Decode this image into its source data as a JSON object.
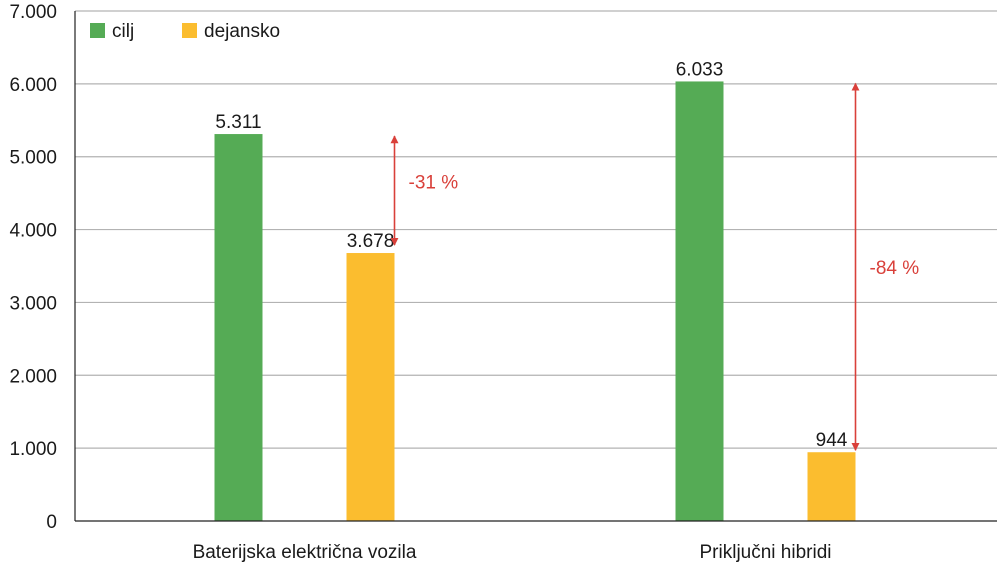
{
  "chart_data": {
    "type": "bar",
    "categories": [
      "Baterijska električna vozila",
      "Priključni hibridi"
    ],
    "series": [
      {
        "name": "cilj",
        "values": [
          5311,
          6033
        ],
        "labels": [
          "5.311",
          "6.033"
        ],
        "color": "#55ab55"
      },
      {
        "name": "dejansko",
        "values": [
          3678,
          944
        ],
        "labels": [
          "3.678",
          "944"
        ],
        "color": "#fbbd2f"
      }
    ],
    "ylim": [
      0,
      7000
    ],
    "yticks": [
      0,
      1000,
      2000,
      3000,
      4000,
      5000,
      6000,
      7000
    ],
    "ytick_labels": [
      "0",
      "1.000",
      "2.000",
      "3.000",
      "4.000",
      "5.000",
      "6.000",
      "7.000"
    ],
    "grid": true,
    "legend_position": "top-left",
    "annotations": [
      {
        "category": 0,
        "from": 3678,
        "to": 5311,
        "text": "-31 %",
        "color": "#d9403a"
      },
      {
        "category": 1,
        "from": 944,
        "to": 6033,
        "text": "-84 %",
        "color": "#d9403a"
      }
    ]
  }
}
